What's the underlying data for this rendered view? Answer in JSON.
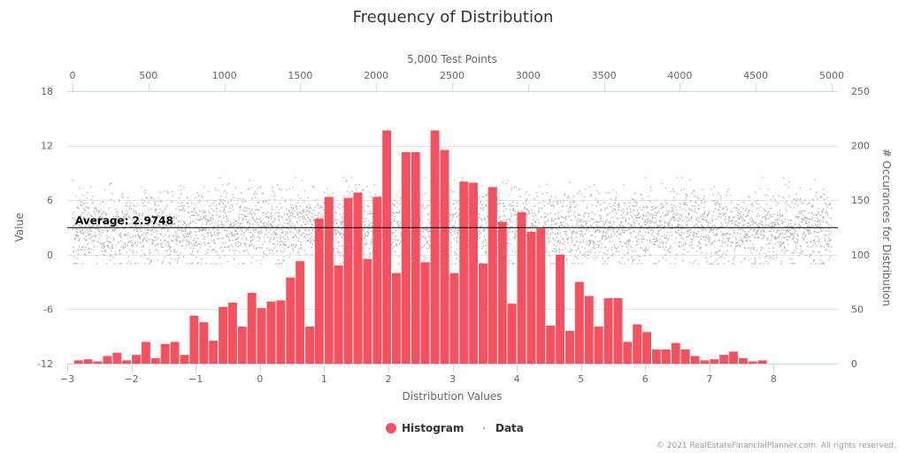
{
  "chart_data": {
    "type": "histogram+scatter",
    "title": "Frequency of Distribution",
    "x_bottom": {
      "label": "Distribution Values",
      "range": [
        -3,
        9
      ],
      "ticks": [
        -3,
        -2,
        -1,
        0,
        1,
        2,
        3,
        4,
        5,
        6,
        7,
        8
      ]
    },
    "x_top": {
      "label": "5,000 Test Points",
      "range": [
        0,
        5000
      ],
      "ticks": [
        0,
        500,
        1000,
        1500,
        2000,
        2500,
        3000,
        3500,
        4000,
        4500,
        5000
      ]
    },
    "y_left": {
      "label": "Value",
      "range": [
        -12,
        18
      ],
      "ticks": [
        -12,
        -6,
        0,
        6,
        12,
        18
      ]
    },
    "y_right": {
      "label": "# Occurances for Distribution",
      "range": [
        0,
        250
      ],
      "ticks": [
        0,
        50,
        100,
        150,
        200,
        250
      ]
    },
    "average": {
      "value": 2.9748,
      "label": "Average: 2.9748"
    },
    "histogram": {
      "name": "Histogram",
      "color": "#f7505e",
      "bin_start": -2.9,
      "bin_width": 0.15,
      "counts": [
        3,
        4,
        2,
        7,
        10,
        3,
        8,
        20,
        5,
        18,
        20,
        8,
        44,
        38,
        21,
        52,
        56,
        34,
        65,
        51,
        57,
        58,
        79,
        94,
        34,
        133,
        153,
        90,
        152,
        157,
        96,
        153,
        214,
        83,
        194,
        194,
        93,
        214,
        196,
        83,
        167,
        166,
        92,
        162,
        130,
        55,
        139,
        121,
        124,
        35,
        100,
        30,
        75,
        62,
        34,
        60,
        60,
        20,
        36,
        29,
        13,
        13,
        19,
        13,
        7,
        3,
        4,
        8,
        11,
        5,
        2,
        3
      ]
    },
    "scatter": {
      "name": "Data",
      "color": "#bbbbbb",
      "count": 5000,
      "mean": 2.9748,
      "stdev": 2.0
    },
    "legend": {
      "position": "bottom-center",
      "items": [
        "Histogram",
        "Data"
      ]
    },
    "credits": "© 2021 RealEstateFinancialPlanner.com. All rights reserved."
  }
}
